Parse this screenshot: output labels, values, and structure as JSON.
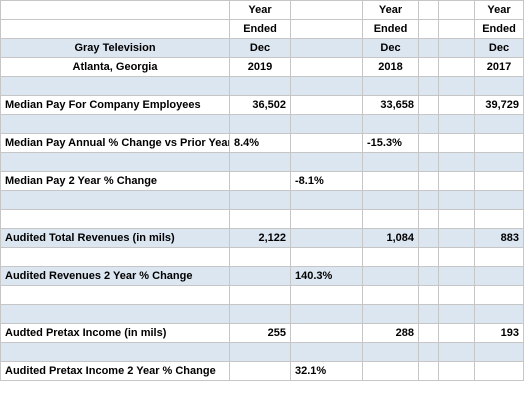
{
  "table": {
    "rows": [
      [
        null,
        "Year",
        null,
        "Year",
        null,
        null,
        "Year"
      ],
      [
        null,
        "Ended",
        null,
        "Ended",
        null,
        null,
        "Ended"
      ],
      [
        "Gray Television",
        "Dec",
        null,
        "Dec",
        null,
        null,
        "Dec"
      ],
      [
        "Atlanta, Georgia",
        "2019",
        null,
        "2018",
        null,
        null,
        "2017"
      ],
      [
        null,
        null,
        null,
        null,
        null,
        null,
        null
      ],
      [
        "Median Pay For Company Employees",
        "36,502",
        null,
        "33,658",
        null,
        null,
        "39,729"
      ],
      [
        null,
        null,
        null,
        null,
        null,
        null,
        null
      ],
      [
        "Median Pay Annual % Change vs Prior Year",
        "8.4%",
        null,
        "-15.3%",
        null,
        null,
        null
      ],
      [
        null,
        null,
        null,
        null,
        null,
        null,
        null
      ],
      [
        "Median Pay 2 Year % Change",
        null,
        "-8.1%",
        null,
        null,
        null,
        null
      ],
      [
        null,
        null,
        null,
        null,
        null,
        null,
        null
      ],
      [
        null,
        null,
        null,
        null,
        null,
        null,
        null
      ],
      [
        "Audited Total Revenues (in mils)",
        "2,122",
        null,
        "1,084",
        null,
        null,
        "883"
      ],
      [
        null,
        null,
        null,
        null,
        null,
        null,
        null
      ],
      [
        "Audited Revenues 2 Year % Change",
        null,
        "140.3%",
        null,
        null,
        null,
        null
      ],
      [
        null,
        null,
        null,
        null,
        null,
        null,
        null
      ],
      [
        null,
        null,
        null,
        null,
        null,
        null,
        null
      ],
      [
        "Audted Pretax Income (in mils)",
        "255",
        null,
        "288",
        null,
        null,
        "193"
      ],
      [
        null,
        null,
        null,
        null,
        null,
        null,
        null
      ],
      [
        "Audited Pretax Income 2 Year % Change",
        null,
        "32.1%",
        null,
        null,
        null,
        null
      ]
    ]
  }
}
